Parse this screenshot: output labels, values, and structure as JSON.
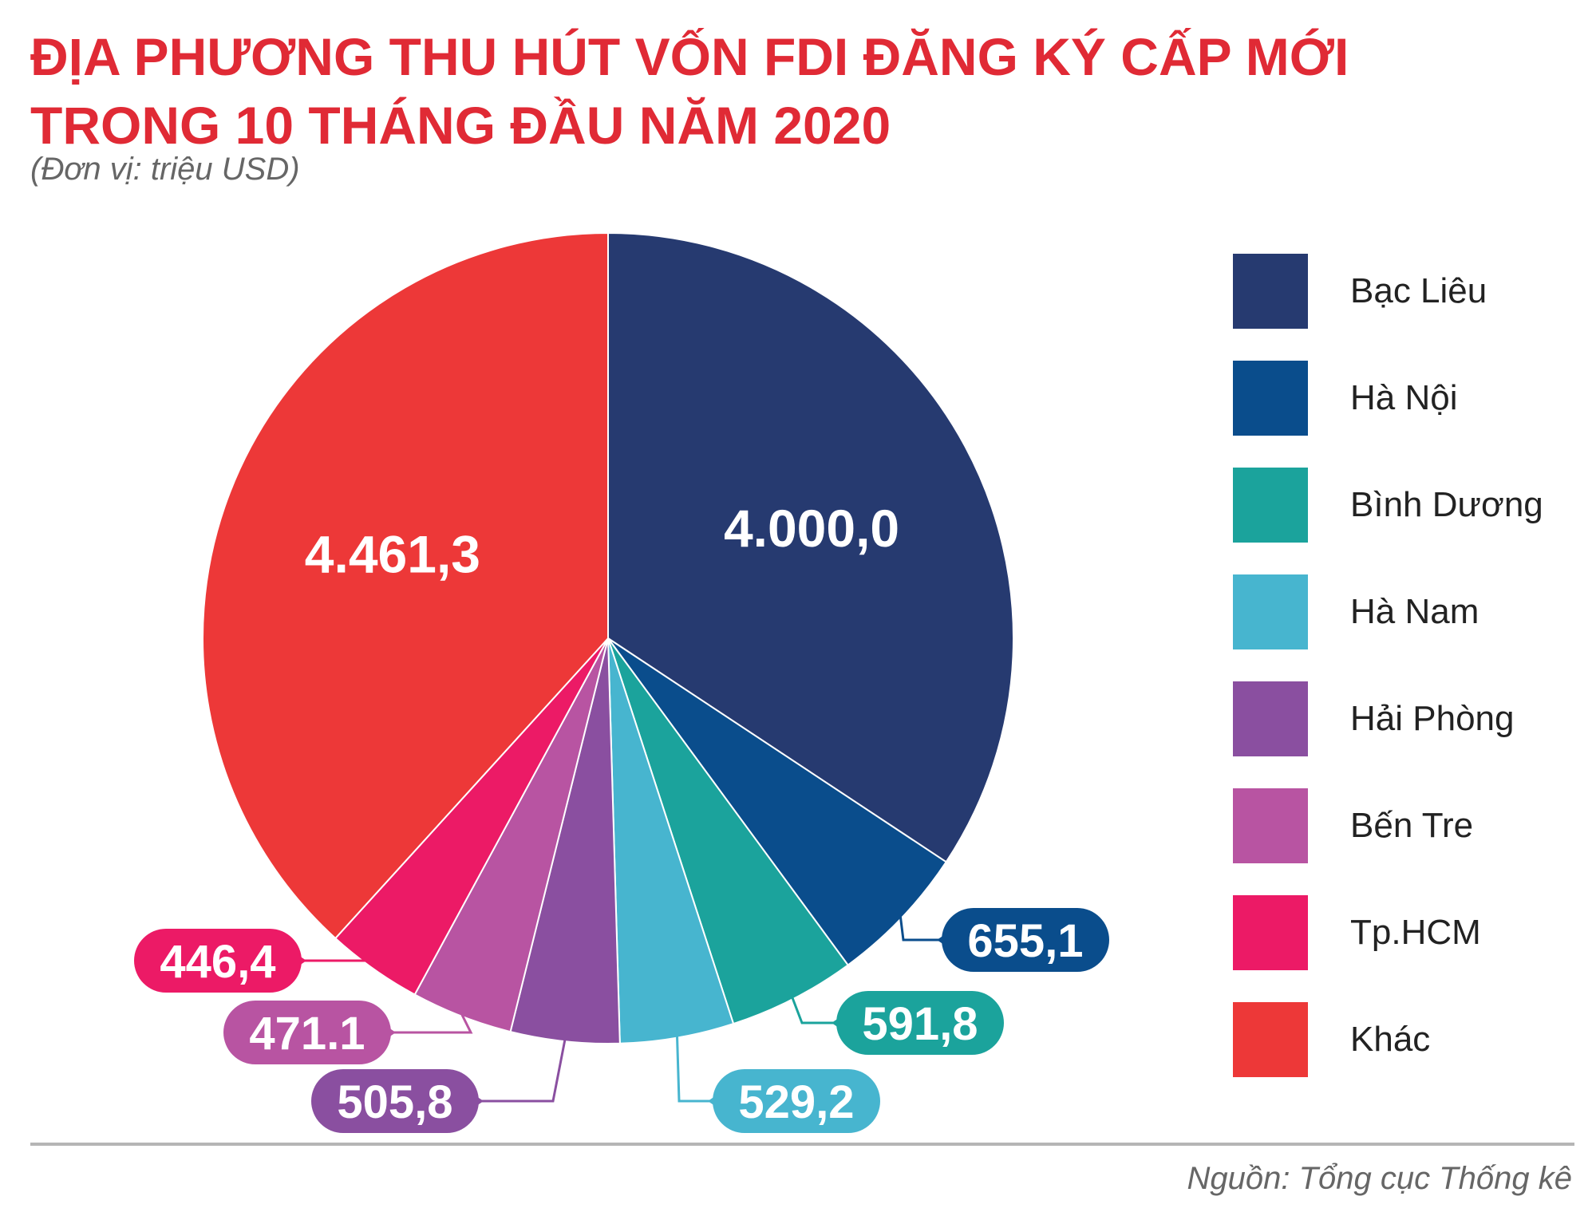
{
  "title_line1": "ĐỊA PHƯƠNG THU HÚT VỐN FDI ĐĂNG KÝ CẤP MỚI",
  "title_line2": "TRONG 10 THÁNG ĐẦU NĂM 2020",
  "unit": "(Đơn vị: triệu USD)",
  "source": "Nguồn: Tổng cục Thống kê",
  "chart_data": {
    "type": "pie",
    "title": "ĐỊA PHƯƠNG THU HÚT VỐN FDI ĐĂNG KÝ CẤP MỚI TRONG 10 THÁNG ĐẦU NĂM 2020",
    "unit": "triệu USD",
    "legend_position": "right",
    "slices": [
      {
        "name": "Bạc Liêu",
        "value": 4000.0,
        "label": "4.000,0",
        "color": "#263a70"
      },
      {
        "name": "Hà Nội",
        "value": 655.1,
        "label": "655,1",
        "color": "#0a4d8c"
      },
      {
        "name": "Bình Dương",
        "value": 591.8,
        "label": "591,8",
        "color": "#1ba39c"
      },
      {
        "name": "Hà Nam",
        "value": 529.2,
        "label": "529,2",
        "color": "#47b5cf"
      },
      {
        "name": "Hải Phòng",
        "value": 505.8,
        "label": "505,8",
        "color": "#8a4fa0"
      },
      {
        "name": "Bến Tre",
        "value": 471.1,
        "label": "471.1",
        "color": "#b854a2"
      },
      {
        "name": "Tp.HCM",
        "value": 446.4,
        "label": "446,4",
        "color": "#ec1a66"
      },
      {
        "name": "Khác",
        "value": 4461.3,
        "label": "4.461,3",
        "color": "#ed3838"
      }
    ]
  }
}
